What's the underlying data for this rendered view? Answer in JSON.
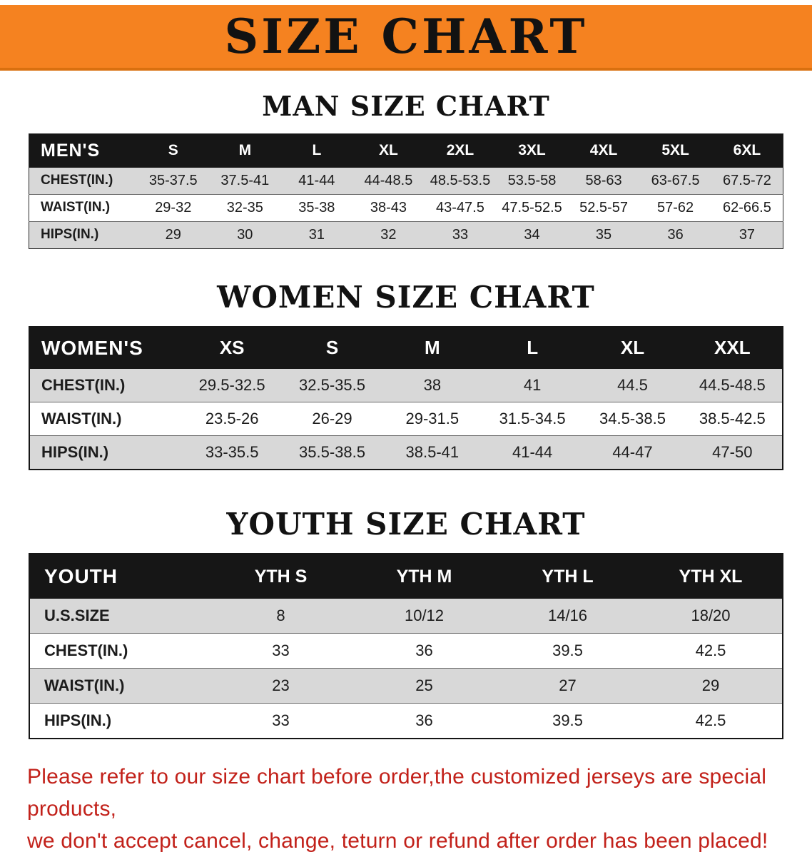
{
  "banner": {
    "title": "SIZE CHART"
  },
  "men": {
    "heading": "MAN SIZE CHART",
    "header": [
      "MEN'S",
      "S",
      "M",
      "L",
      "XL",
      "2XL",
      "3XL",
      "4XL",
      "5XL",
      "6XL"
    ],
    "rows": [
      {
        "label": "CHEST(IN.)",
        "values": [
          "35-37.5",
          "37.5-41",
          "41-44",
          "44-48.5",
          "48.5-53.5",
          "53.5-58",
          "58-63",
          "63-67.5",
          "67.5-72"
        ]
      },
      {
        "label": "WAIST(IN.)",
        "values": [
          "29-32",
          "32-35",
          "35-38",
          "38-43",
          "43-47.5",
          "47.5-52.5",
          "52.5-57",
          "57-62",
          "62-66.5"
        ]
      },
      {
        "label": "HIPS(IN.)",
        "values": [
          "29",
          "30",
          "31",
          "32",
          "33",
          "34",
          "35",
          "36",
          "37"
        ]
      }
    ]
  },
  "women": {
    "heading": "WOMEN SIZE CHART",
    "header": [
      "WOMEN'S",
      "XS",
      "S",
      "M",
      "L",
      "XL",
      "XXL"
    ],
    "rows": [
      {
        "label": "CHEST(IN.)",
        "values": [
          "29.5-32.5",
          "32.5-35.5",
          "38",
          "41",
          "44.5",
          "44.5-48.5"
        ]
      },
      {
        "label": "WAIST(IN.)",
        "values": [
          "23.5-26",
          "26-29",
          "29-31.5",
          "31.5-34.5",
          "34.5-38.5",
          "38.5-42.5"
        ]
      },
      {
        "label": "HIPS(IN.)",
        "values": [
          "33-35.5",
          "35.5-38.5",
          "38.5-41",
          "41-44",
          "44-47",
          "47-50"
        ]
      }
    ]
  },
  "youth": {
    "heading": "YOUTH SIZE CHART",
    "header": [
      "YOUTH",
      "YTH S",
      "YTH M",
      "YTH L",
      "YTH XL"
    ],
    "rows": [
      {
        "label": "U.S.SIZE",
        "values": [
          "8",
          "10/12",
          "14/16",
          "18/20"
        ]
      },
      {
        "label": "CHEST(IN.)",
        "values": [
          "33",
          "36",
          "39.5",
          "42.5"
        ]
      },
      {
        "label": "WAIST(IN.)",
        "values": [
          "23",
          "25",
          "27",
          "29"
        ]
      },
      {
        "label": "HIPS(IN.)",
        "values": [
          "33",
          "36",
          "39.5",
          "42.5"
        ]
      }
    ]
  },
  "notice": {
    "line1": "Please refer to our size chart before order,the customized jerseys are special products,",
    "line2": "we don't accept cancel, change, teturn or refund after order has been placed!"
  },
  "colors": {
    "banner_bg": "#F58220",
    "header_bg": "#161616",
    "row_alt": "#D8D8D8",
    "notice_red": "#C2211A"
  }
}
